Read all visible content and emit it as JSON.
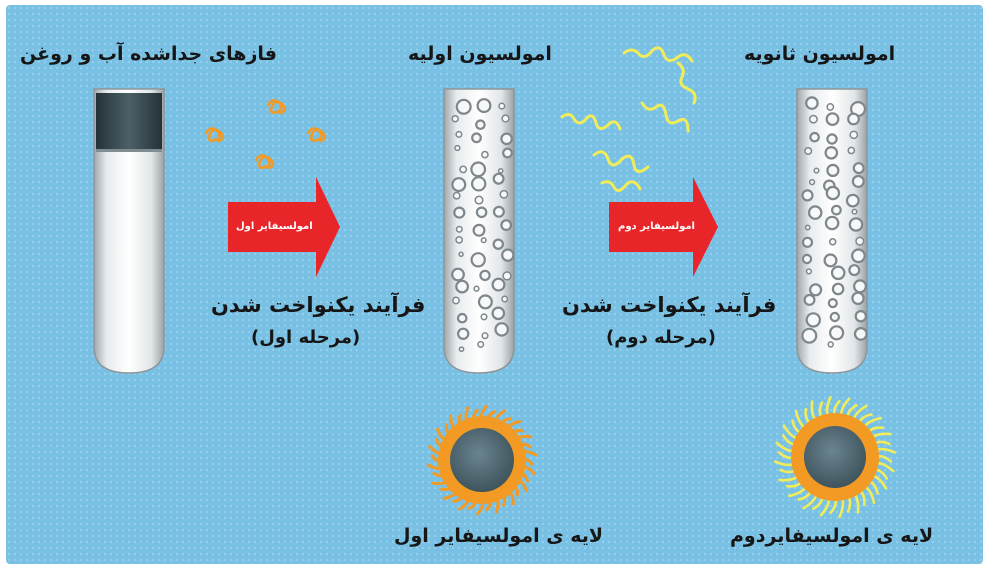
{
  "labels": {
    "separated_phases": "فازهای جداشده آب و روغن",
    "primary_emulsion": "امولسیون اولیه",
    "secondary_emulsion": "امولسیون ثانویه",
    "emulsifier_1": "امولسیفایر اول",
    "emulsifier_2": "امولسیفایر دوم",
    "homogenization": "فرآیند یکنواخت شدن",
    "stage_1": "(مرحله اول)",
    "stage_2": "(مرحله دوم)",
    "layer_1": "لایه ی امولسیفایر اول",
    "layer_2": "لایه ی امولسیفایردوم"
  },
  "colors": {
    "background": "#79c1e4",
    "arrow": "#e8262a",
    "emulsifier_1": "#f39a24",
    "emulsifier_2": "#f1ec5a",
    "droplet_core": "#536d78"
  }
}
